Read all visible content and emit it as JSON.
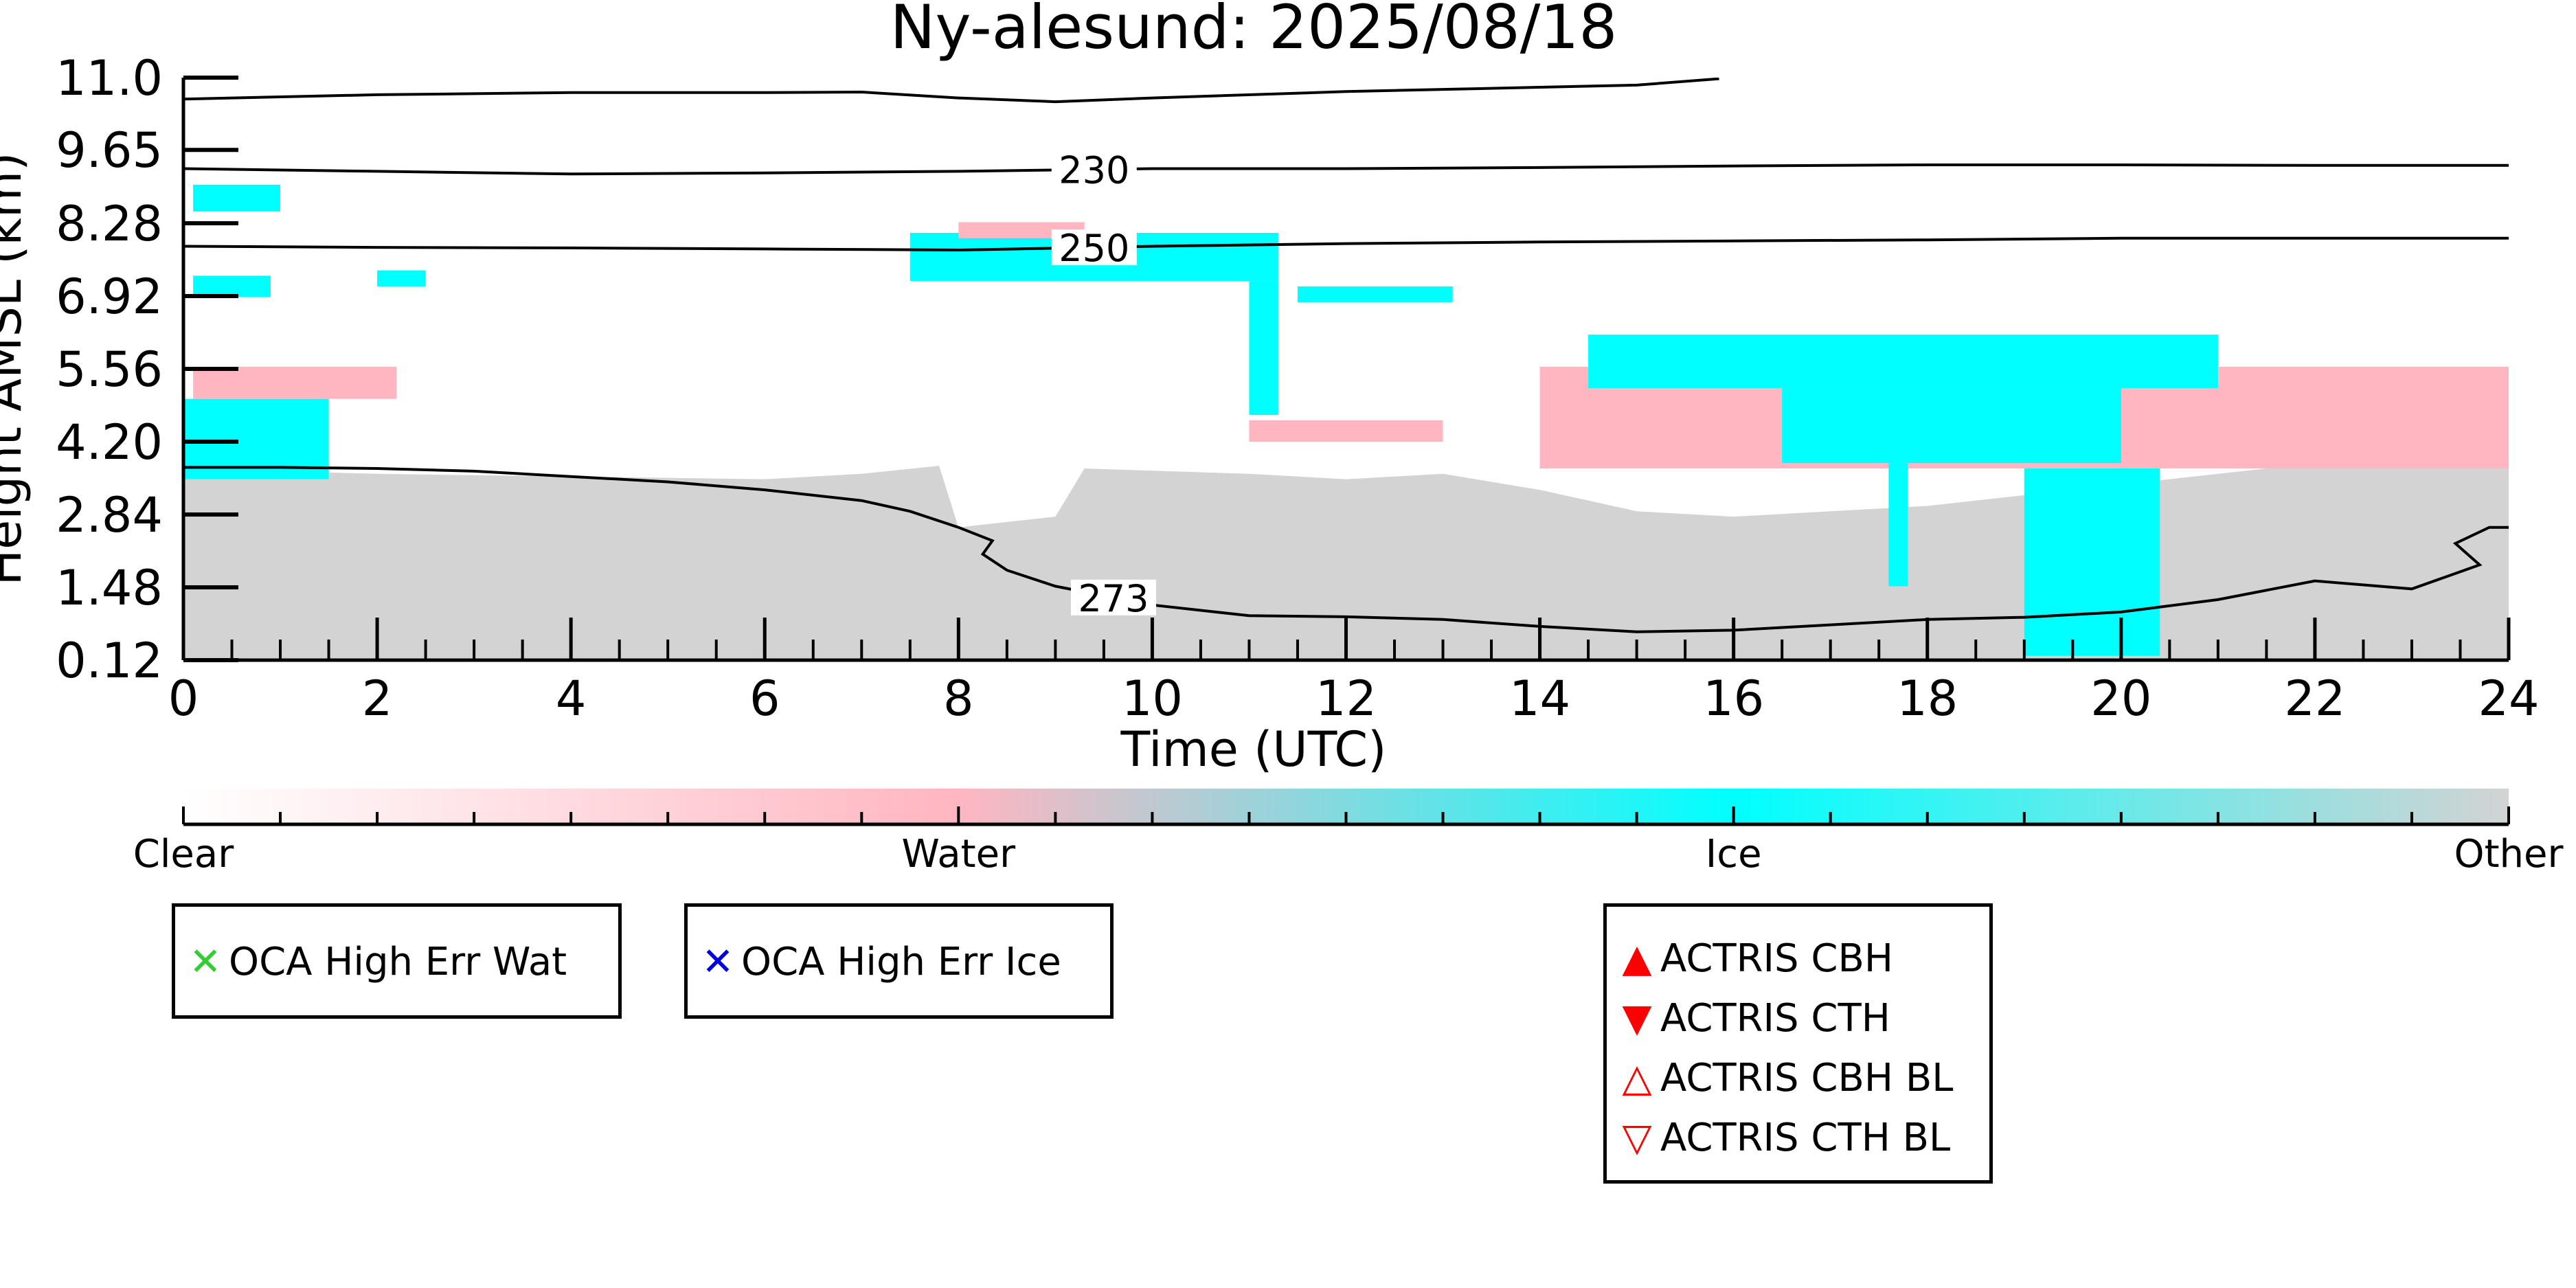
{
  "chart_data": {
    "type": "heatmap",
    "title": "Ny-alesund: 2025/08/18",
    "xlabel": "Time (UTC)",
    "ylabel": "Height AMSL (km)",
    "xlim": [
      0,
      24
    ],
    "ylim": [
      0.12,
      11.0
    ],
    "x_ticks": [
      "0",
      "2",
      "4",
      "6",
      "8",
      "10",
      "12",
      "14",
      "16",
      "18",
      "20",
      "22",
      "24"
    ],
    "y_ticks": [
      "0.12",
      "1.48",
      "2.84",
      "4.20",
      "5.56",
      "6.92",
      "8.28",
      "9.65",
      "11.0"
    ],
    "contours": [
      {
        "label": "",
        "points": [
          [
            0,
            10.6
          ],
          [
            2,
            10.68
          ],
          [
            4,
            10.72
          ],
          [
            6,
            10.72
          ],
          [
            7,
            10.73
          ],
          [
            8,
            10.62
          ],
          [
            9,
            10.55
          ],
          [
            10,
            10.62
          ],
          [
            12,
            10.74
          ],
          [
            14,
            10.82
          ],
          [
            15,
            10.86
          ],
          [
            15.85,
            10.98
          ]
        ]
      },
      {
        "label": "230",
        "points": [
          [
            0,
            9.3
          ],
          [
            2,
            9.25
          ],
          [
            4,
            9.2
          ],
          [
            6,
            9.22
          ],
          [
            8,
            9.25
          ],
          [
            10,
            9.3
          ],
          [
            12,
            9.3
          ],
          [
            14,
            9.32
          ],
          [
            16,
            9.35
          ],
          [
            18,
            9.37
          ],
          [
            20,
            9.37
          ],
          [
            22,
            9.36
          ],
          [
            24,
            9.36
          ]
        ]
      },
      {
        "label": "250",
        "points": [
          [
            0,
            7.85
          ],
          [
            2,
            7.83
          ],
          [
            4,
            7.82
          ],
          [
            6,
            7.8
          ],
          [
            8,
            7.78
          ],
          [
            10,
            7.85
          ],
          [
            12,
            7.9
          ],
          [
            14,
            7.93
          ],
          [
            16,
            7.95
          ],
          [
            18,
            7.97
          ],
          [
            20,
            8.0
          ],
          [
            22,
            8.0
          ],
          [
            24,
            8.0
          ]
        ]
      },
      {
        "label": "273",
        "points": [
          [
            0,
            3.72
          ],
          [
            1,
            3.72
          ],
          [
            2,
            3.7
          ],
          [
            3,
            3.65
          ],
          [
            4,
            3.55
          ],
          [
            5,
            3.45
          ],
          [
            6,
            3.3
          ],
          [
            7,
            3.1
          ],
          [
            7.5,
            2.9
          ],
          [
            8,
            2.6
          ],
          [
            8.35,
            2.35
          ],
          [
            8.25,
            2.1
          ],
          [
            8.5,
            1.8
          ],
          [
            9,
            1.5
          ],
          [
            10,
            1.15
          ],
          [
            11,
            0.95
          ],
          [
            12,
            0.93
          ],
          [
            13,
            0.88
          ],
          [
            14,
            0.75
          ],
          [
            15,
            0.65
          ],
          [
            16,
            0.68
          ],
          [
            17,
            0.78
          ],
          [
            18,
            0.88
          ],
          [
            19,
            0.92
          ],
          [
            20,
            1.02
          ],
          [
            21,
            1.25
          ],
          [
            22,
            1.6
          ],
          [
            23,
            1.45
          ],
          [
            23.7,
            1.9
          ],
          [
            23.45,
            2.3
          ],
          [
            23.8,
            2.6
          ],
          [
            24,
            2.6
          ]
        ]
      }
    ],
    "colorbar": {
      "labels": [
        "Clear",
        "Water",
        "Ice",
        "Other"
      ],
      "stops": [
        "#ffffff",
        "#ffb6c1",
        "#00ffff",
        "#d3d3d3"
      ]
    },
    "legends": {
      "wat": {
        "marker": "✕",
        "color": "#33cc33",
        "label": "OCA High Err Wat"
      },
      "ice": {
        "marker": "✕",
        "color": "#0000dd",
        "label": "OCA High Err Ice"
      },
      "actris": [
        {
          "marker": "▲",
          "color": "#ff0000",
          "label": "ACTRIS CBH"
        },
        {
          "marker": "▼",
          "color": "#ff0000",
          "label": "ACTRIS CTH"
        },
        {
          "marker": "△",
          "color": "#ff0000",
          "label": "ACTRIS CBH BL"
        },
        {
          "marker": "▽",
          "color": "#ff0000",
          "label": "ACTRIS CTH BL"
        }
      ]
    },
    "field_colors": {
      "clear": "#ffffff",
      "water": "#ffb6c1",
      "ice": "#00ffff",
      "other": "#d3d3d3"
    },
    "classification_regions": [
      {
        "class": "other",
        "x": [
          0,
          24
        ],
        "y_from": 0.12,
        "y_top": [
          [
            0,
            3.7
          ],
          [
            2,
            3.6
          ],
          [
            4,
            3.55
          ],
          [
            6,
            3.5
          ],
          [
            7,
            3.6
          ],
          [
            7.8,
            3.75
          ],
          [
            8,
            2.6
          ],
          [
            8.5,
            2.7
          ],
          [
            9,
            2.8
          ],
          [
            9.3,
            3.7
          ],
          [
            11,
            3.6
          ],
          [
            12,
            3.5
          ],
          [
            13,
            3.6
          ],
          [
            14,
            3.3
          ],
          [
            15,
            2.9
          ],
          [
            16,
            2.8
          ],
          [
            17,
            2.9
          ],
          [
            18,
            3.0
          ],
          [
            19,
            3.2
          ],
          [
            20,
            3.4
          ],
          [
            21,
            3.6
          ],
          [
            22,
            3.8
          ],
          [
            23,
            3.9
          ],
          [
            24,
            3.8
          ]
        ]
      },
      {
        "class": "ice",
        "x": [
          0,
          1.5
        ],
        "y": [
          3.5,
          5.0
        ]
      },
      {
        "class": "water",
        "x": [
          0.1,
          2.2
        ],
        "y": [
          5.0,
          5.6
        ]
      },
      {
        "class": "ice",
        "x": [
          0.1,
          1.0
        ],
        "y": [
          8.5,
          9.0
        ]
      },
      {
        "class": "ice",
        "x": [
          0.1,
          0.9
        ],
        "y": [
          6.9,
          7.3
        ]
      },
      {
        "class": "ice",
        "x": [
          2.0,
          2.5
        ],
        "y": [
          7.1,
          7.4
        ]
      },
      {
        "class": "ice",
        "x": [
          7.5,
          11.3
        ],
        "y": [
          7.2,
          8.1
        ]
      },
      {
        "class": "water",
        "x": [
          8.0,
          9.3
        ],
        "y": [
          8.0,
          8.3
        ]
      },
      {
        "class": "ice",
        "x": [
          11.0,
          11.3
        ],
        "y": [
          4.7,
          7.2
        ]
      },
      {
        "class": "ice",
        "x": [
          11.5,
          13.1
        ],
        "y": [
          6.8,
          7.1
        ]
      },
      {
        "class": "water",
        "x": [
          11.0,
          13.0
        ],
        "y": [
          4.2,
          4.6
        ]
      },
      {
        "class": "water",
        "x": [
          14.0,
          24.0
        ],
        "y": [
          3.7,
          5.6
        ]
      },
      {
        "class": "ice",
        "x": [
          14.5,
          21.0
        ],
        "y": [
          5.2,
          6.2
        ]
      },
      {
        "class": "ice",
        "x": [
          16.5,
          20.0
        ],
        "y": [
          3.8,
          5.2
        ]
      },
      {
        "class": "ice",
        "x": [
          17.6,
          17.8
        ],
        "y": [
          1.5,
          3.8
        ]
      },
      {
        "class": "ice",
        "x": [
          19.0,
          20.4
        ],
        "y": [
          0.2,
          3.7
        ]
      },
      {
        "class": "water",
        "x": [
          21.0,
          22.0
        ],
        "y": [
          5.0,
          5.2
        ]
      },
      {
        "class": "water",
        "x": [
          23.0,
          24.0
        ],
        "y": [
          4.0,
          4.4
        ]
      }
    ]
  }
}
